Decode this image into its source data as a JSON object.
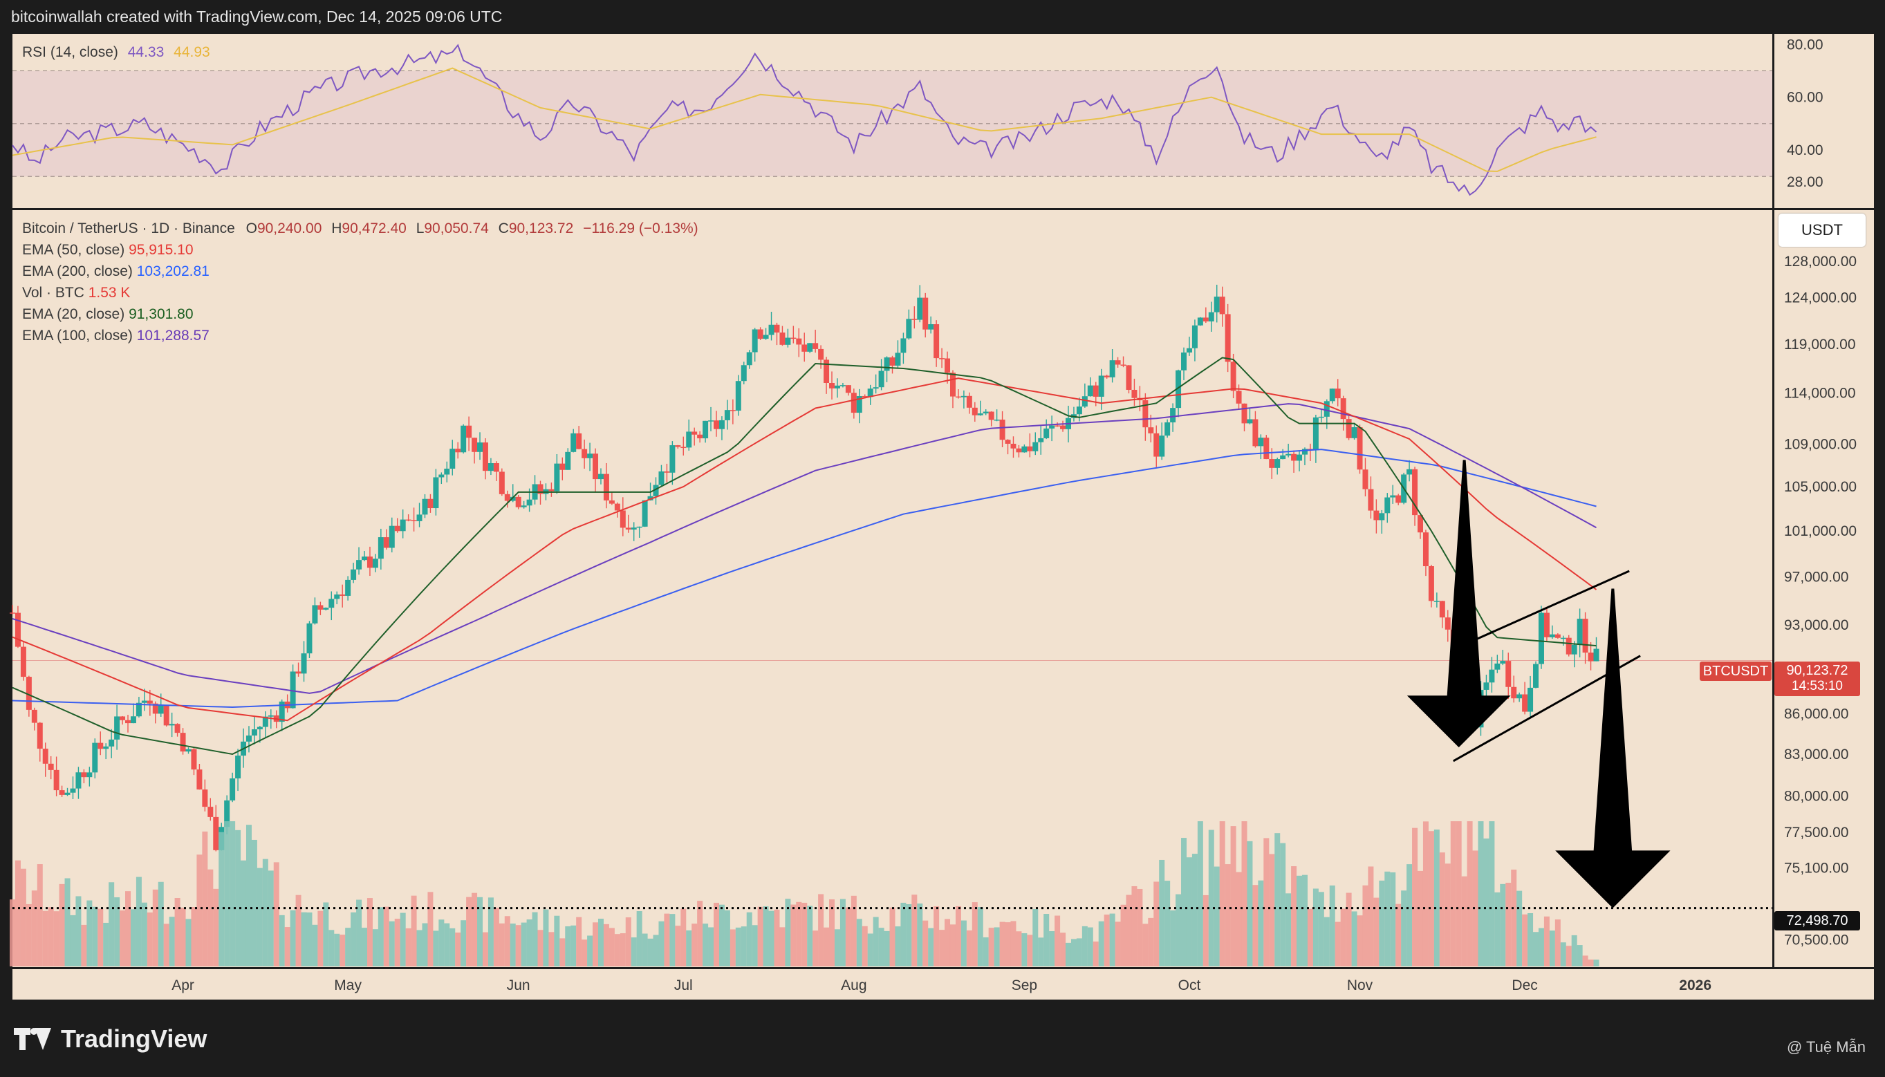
{
  "header": {
    "text": "bitcoinwallah created with TradingView.com, Dec 14, 2025 09:06 UTC"
  },
  "footer": {
    "brand": "TradingView",
    "credit": "@ Tuệ Mẫn"
  },
  "rsi_panel": {
    "label": "RSI (14, close)",
    "value": "44.33",
    "ma_value": "44.93",
    "ticks": [
      "80.00",
      "60.00",
      "40.00",
      "28.00"
    ],
    "rsi_color": "#7e57c2",
    "ma_color": "#f2c94c"
  },
  "main_legend": {
    "symbol": "Bitcoin / TetherUS · 1D · Binance",
    "o_label": "O",
    "o": "90,240.00",
    "h_label": "H",
    "h": "90,472.40",
    "l_label": "L",
    "l": "90,050.74",
    "c_label": "C",
    "c": "90,123.72",
    "change": "−116.29 (−0.13%)",
    "indicators": [
      {
        "label": "EMA (50, close)",
        "value": "95,915.10",
        "color": "#e53935"
      },
      {
        "label": "EMA (200, close)",
        "value": "103,202.81",
        "color": "#2962ff"
      },
      {
        "label": "Vol · BTC",
        "value": "1.53 K",
        "color": "#e53935"
      },
      {
        "label": "EMA (20, close)",
        "value": "91,301.80",
        "color": "#1b5e20"
      },
      {
        "label": "EMA (100, close)",
        "value": "101,288.57",
        "color": "#673ab7"
      }
    ]
  },
  "price_axis": {
    "currency": "USDT",
    "ticks": [
      "128,000.00",
      "124,000.00",
      "119,000.00",
      "114,000.00",
      "109,000.00",
      "105,000.00",
      "101,000.00",
      "97,000.00",
      "93,000.00",
      "86,000.00",
      "83,000.00",
      "80,000.00",
      "77,500.00",
      "75,100.00",
      "70,500.00"
    ],
    "symbol_tag": "BTCUSDT",
    "last_price": "90,123.72",
    "countdown": "14:53:10",
    "target_price": "72,498.70"
  },
  "time_axis": {
    "labels": [
      "Apr",
      "May",
      "Jun",
      "Jul",
      "Aug",
      "Sep",
      "Oct",
      "Nov",
      "Dec",
      "2026"
    ]
  },
  "colors": {
    "up": "#26a69a",
    "down": "#ef5350",
    "panel_bg": "#f2e2d0"
  },
  "chart_data": {
    "type": "candlestick",
    "title": "Bitcoin / TetherUS · 1D · Binance",
    "x_range": [
      "2025-03-01",
      "2026-01-15"
    ],
    "y_range": [
      69000,
      131000
    ],
    "scale": "log",
    "close_path": [
      [
        "2025-03-01",
        94000
      ],
      [
        "2025-03-04",
        86000
      ],
      [
        "2025-03-10",
        80000
      ],
      [
        "2025-03-20",
        85000
      ],
      [
        "2025-03-26",
        87500
      ],
      [
        "2025-04-01",
        84000
      ],
      [
        "2025-04-07",
        77000
      ],
      [
        "2025-04-12",
        84000
      ],
      [
        "2025-04-20",
        87000
      ],
      [
        "2025-04-25",
        93800
      ],
      [
        "2025-05-08",
        100000
      ],
      [
        "2025-05-15",
        103000
      ],
      [
        "2025-05-22",
        110500
      ],
      [
        "2025-05-31",
        104000
      ],
      [
        "2025-06-06",
        104500
      ],
      [
        "2025-06-11",
        109500
      ],
      [
        "2025-06-17",
        104500
      ],
      [
        "2025-06-22",
        101000
      ],
      [
        "2025-06-27",
        107000
      ],
      [
        "2025-07-03",
        109500
      ],
      [
        "2025-07-09",
        111500
      ],
      [
        "2025-07-14",
        121000
      ],
      [
        "2025-07-23",
        118500
      ],
      [
        "2025-08-01",
        113000
      ],
      [
        "2025-08-08",
        117000
      ],
      [
        "2025-08-13",
        123500
      ],
      [
        "2025-08-19",
        113500
      ],
      [
        "2025-08-25",
        111000
      ],
      [
        "2025-09-01",
        108500
      ],
      [
        "2025-09-09",
        111500
      ],
      [
        "2025-09-18",
        117000
      ],
      [
        "2025-09-25",
        109000
      ],
      [
        "2025-10-01",
        118500
      ],
      [
        "2025-10-06",
        124500
      ],
      [
        "2025-10-10",
        112000
      ],
      [
        "2025-10-17",
        106500
      ],
      [
        "2025-10-22",
        108000
      ],
      [
        "2025-10-27",
        114500
      ],
      [
        "2025-10-31",
        109500
      ],
      [
        "2025-11-04",
        101500
      ],
      [
        "2025-11-10",
        106000
      ],
      [
        "2025-11-14",
        95000
      ],
      [
        "2025-11-17",
        92000
      ],
      [
        "2025-11-21",
        84500
      ],
      [
        "2025-11-26",
        90500
      ],
      [
        "2025-12-01",
        86500
      ],
      [
        "2025-12-04",
        93000
      ],
      [
        "2025-12-08",
        91000
      ],
      [
        "2025-12-11",
        92500
      ],
      [
        "2025-12-14",
        90123.72
      ]
    ],
    "ema_20": [
      [
        "2025-03-01",
        88000
      ],
      [
        "2025-03-20",
        84500
      ],
      [
        "2025-04-10",
        83000
      ],
      [
        "2025-04-25",
        86000
      ],
      [
        "2025-05-15",
        96000
      ],
      [
        "2025-06-01",
        104500
      ],
      [
        "2025-06-25",
        104500
      ],
      [
        "2025-07-10",
        108500
      ],
      [
        "2025-07-25",
        117000
      ],
      [
        "2025-08-10",
        116500
      ],
      [
        "2025-08-25",
        115500
      ],
      [
        "2025-09-10",
        111500
      ],
      [
        "2025-09-25",
        113000
      ],
      [
        "2025-10-08",
        118000
      ],
      [
        "2025-10-20",
        111000
      ],
      [
        "2025-11-01",
        111000
      ],
      [
        "2025-11-14",
        101000
      ],
      [
        "2025-11-25",
        92000
      ],
      [
        "2025-12-14",
        91301.8
      ]
    ],
    "ema_50": [
      [
        "2025-03-01",
        92000
      ],
      [
        "2025-04-01",
        86500
      ],
      [
        "2025-04-20",
        85500
      ],
      [
        "2025-05-15",
        92000
      ],
      [
        "2025-06-10",
        101000
      ],
      [
        "2025-07-01",
        105000
      ],
      [
        "2025-07-25",
        112500
      ],
      [
        "2025-08-20",
        115500
      ],
      [
        "2025-09-15",
        113000
      ],
      [
        "2025-10-10",
        114500
      ],
      [
        "2025-10-25",
        113000
      ],
      [
        "2025-11-10",
        109500
      ],
      [
        "2025-11-25",
        102500
      ],
      [
        "2025-12-14",
        95915.1
      ]
    ],
    "ema_100": [
      [
        "2025-03-01",
        93500
      ],
      [
        "2025-04-01",
        89000
      ],
      [
        "2025-04-25",
        87500
      ],
      [
        "2025-05-25",
        93500
      ],
      [
        "2025-06-25",
        100000
      ],
      [
        "2025-07-25",
        106500
      ],
      [
        "2025-08-25",
        110500
      ],
      [
        "2025-09-25",
        111500
      ],
      [
        "2025-10-20",
        113000
      ],
      [
        "2025-11-10",
        110500
      ],
      [
        "2025-12-14",
        101288.57
      ]
    ],
    "ema_200": [
      [
        "2025-03-01",
        87000
      ],
      [
        "2025-04-10",
        86500
      ],
      [
        "2025-05-10",
        87000
      ],
      [
        "2025-06-10",
        92500
      ],
      [
        "2025-07-10",
        97500
      ],
      [
        "2025-08-10",
        102500
      ],
      [
        "2025-09-10",
        105500
      ],
      [
        "2025-10-10",
        108000
      ],
      [
        "2025-10-25",
        108500
      ],
      [
        "2025-11-15",
        107000
      ],
      [
        "2025-12-14",
        103202.81
      ]
    ],
    "rsi": [
      [
        "2025-03-01",
        43
      ],
      [
        "2025-03-05",
        35
      ],
      [
        "2025-03-10",
        44
      ],
      [
        "2025-03-18",
        47
      ],
      [
        "2025-03-25",
        50
      ],
      [
        "2025-04-03",
        40
      ],
      [
        "2025-04-08",
        33
      ],
      [
        "2025-04-15",
        48
      ],
      [
        "2025-04-25",
        62
      ],
      [
        "2025-05-05",
        70
      ],
      [
        "2025-05-15",
        74
      ],
      [
        "2025-05-22",
        77
      ],
      [
        "2025-05-31",
        55
      ],
      [
        "2025-06-05",
        45
      ],
      [
        "2025-06-11",
        58
      ],
      [
        "2025-06-18",
        46
      ],
      [
        "2025-06-22",
        38
      ],
      [
        "2025-06-28",
        55
      ],
      [
        "2025-07-05",
        56
      ],
      [
        "2025-07-14",
        77
      ],
      [
        "2025-07-22",
        62
      ],
      [
        "2025-08-01",
        42
      ],
      [
        "2025-08-08",
        55
      ],
      [
        "2025-08-13",
        64
      ],
      [
        "2025-08-19",
        44
      ],
      [
        "2025-08-25",
        40
      ],
      [
        "2025-09-01",
        44
      ],
      [
        "2025-09-10",
        56
      ],
      [
        "2025-09-18",
        60
      ],
      [
        "2025-09-25",
        38
      ],
      [
        "2025-10-02",
        67
      ],
      [
        "2025-10-06",
        74
      ],
      [
        "2025-10-10",
        46
      ],
      [
        "2025-10-17",
        38
      ],
      [
        "2025-10-27",
        57
      ],
      [
        "2025-11-04",
        36
      ],
      [
        "2025-11-10",
        48
      ],
      [
        "2025-11-14",
        34
      ],
      [
        "2025-11-21",
        23
      ],
      [
        "2025-11-26",
        40
      ],
      [
        "2025-12-04",
        55
      ],
      [
        "2025-12-08",
        48
      ],
      [
        "2025-12-11",
        53
      ],
      [
        "2025-12-14",
        44.33
      ]
    ],
    "rsi_ma": [
      [
        "2025-03-01",
        38
      ],
      [
        "2025-03-20",
        45
      ],
      [
        "2025-04-10",
        42
      ],
      [
        "2025-05-01",
        57
      ],
      [
        "2025-05-20",
        71
      ],
      [
        "2025-06-05",
        56
      ],
      [
        "2025-06-25",
        48
      ],
      [
        "2025-07-15",
        61
      ],
      [
        "2025-08-05",
        57
      ],
      [
        "2025-08-25",
        47
      ],
      [
        "2025-09-15",
        52
      ],
      [
        "2025-10-05",
        60
      ],
      [
        "2025-10-25",
        46
      ],
      [
        "2025-11-10",
        46
      ],
      [
        "2025-11-25",
        31
      ],
      [
        "2025-12-05",
        40
      ],
      [
        "2025-12-14",
        44.93
      ]
    ],
    "volume_btc_k": [
      [
        "2025-03-01",
        24
      ],
      [
        "2025-03-15",
        17
      ],
      [
        "2025-04-01",
        20
      ],
      [
        "2025-04-09",
        38
      ],
      [
        "2025-04-20",
        18
      ],
      [
        "2025-05-01",
        14
      ],
      [
        "2025-05-20",
        16
      ],
      [
        "2025-06-15",
        11
      ],
      [
        "2025-07-15",
        16
      ],
      [
        "2025-08-15",
        15
      ],
      [
        "2025-09-15",
        10
      ],
      [
        "2025-10-10",
        40
      ],
      [
        "2025-10-25",
        17
      ],
      [
        "2025-11-14",
        32
      ],
      [
        "2025-11-21",
        43
      ],
      [
        "2025-12-01",
        18
      ],
      [
        "2025-12-14",
        1.53
      ]
    ],
    "annotations": [
      {
        "type": "bear_flag_channel",
        "upper": [
          [
            "2025-11-18",
            91000
          ],
          [
            "2025-12-20",
            97500
          ]
        ],
        "lower": [
          [
            "2025-11-18",
            82500
          ],
          [
            "2025-12-22",
            90500
          ]
        ]
      },
      {
        "type": "down_arrow",
        "from": [
          "2025-11-20",
          107500
        ],
        "to": [
          "2025-11-19",
          83500
        ]
      },
      {
        "type": "down_arrow",
        "from": [
          "2025-12-17",
          96000
        ],
        "to": [
          "2025-12-17",
          72498.7
        ]
      },
      {
        "type": "horizontal_line",
        "price": 72498.7,
        "style": "dotted"
      }
    ]
  }
}
